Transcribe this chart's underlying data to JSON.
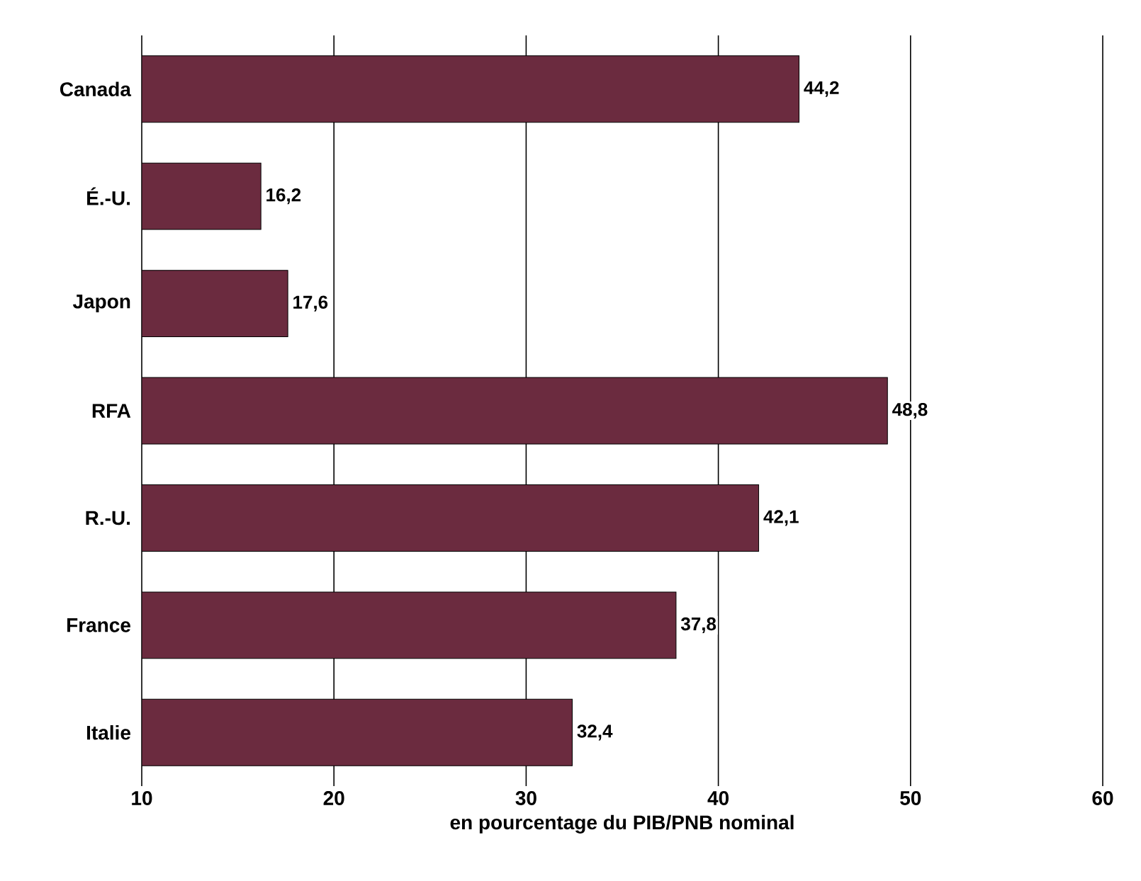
{
  "chart_data": {
    "type": "bar",
    "orientation": "horizontal",
    "categories": [
      "Canada",
      "É.-U.",
      "Japon",
      "RFA",
      "R.-U.",
      "France",
      "Italie"
    ],
    "values": [
      44.2,
      16.2,
      17.6,
      48.8,
      42.1,
      37.8,
      32.4
    ],
    "value_labels": [
      "44,2",
      "16,2",
      "17,6",
      "48,8",
      "42,1",
      "37,8",
      "32,4"
    ],
    "color": "#6b2b3f",
    "xlim": [
      10,
      60
    ],
    "xticks": [
      10,
      20,
      30,
      40,
      50,
      60
    ],
    "xlabel": "en pourcentage du PIB/PNB nominal",
    "grid": "x"
  }
}
